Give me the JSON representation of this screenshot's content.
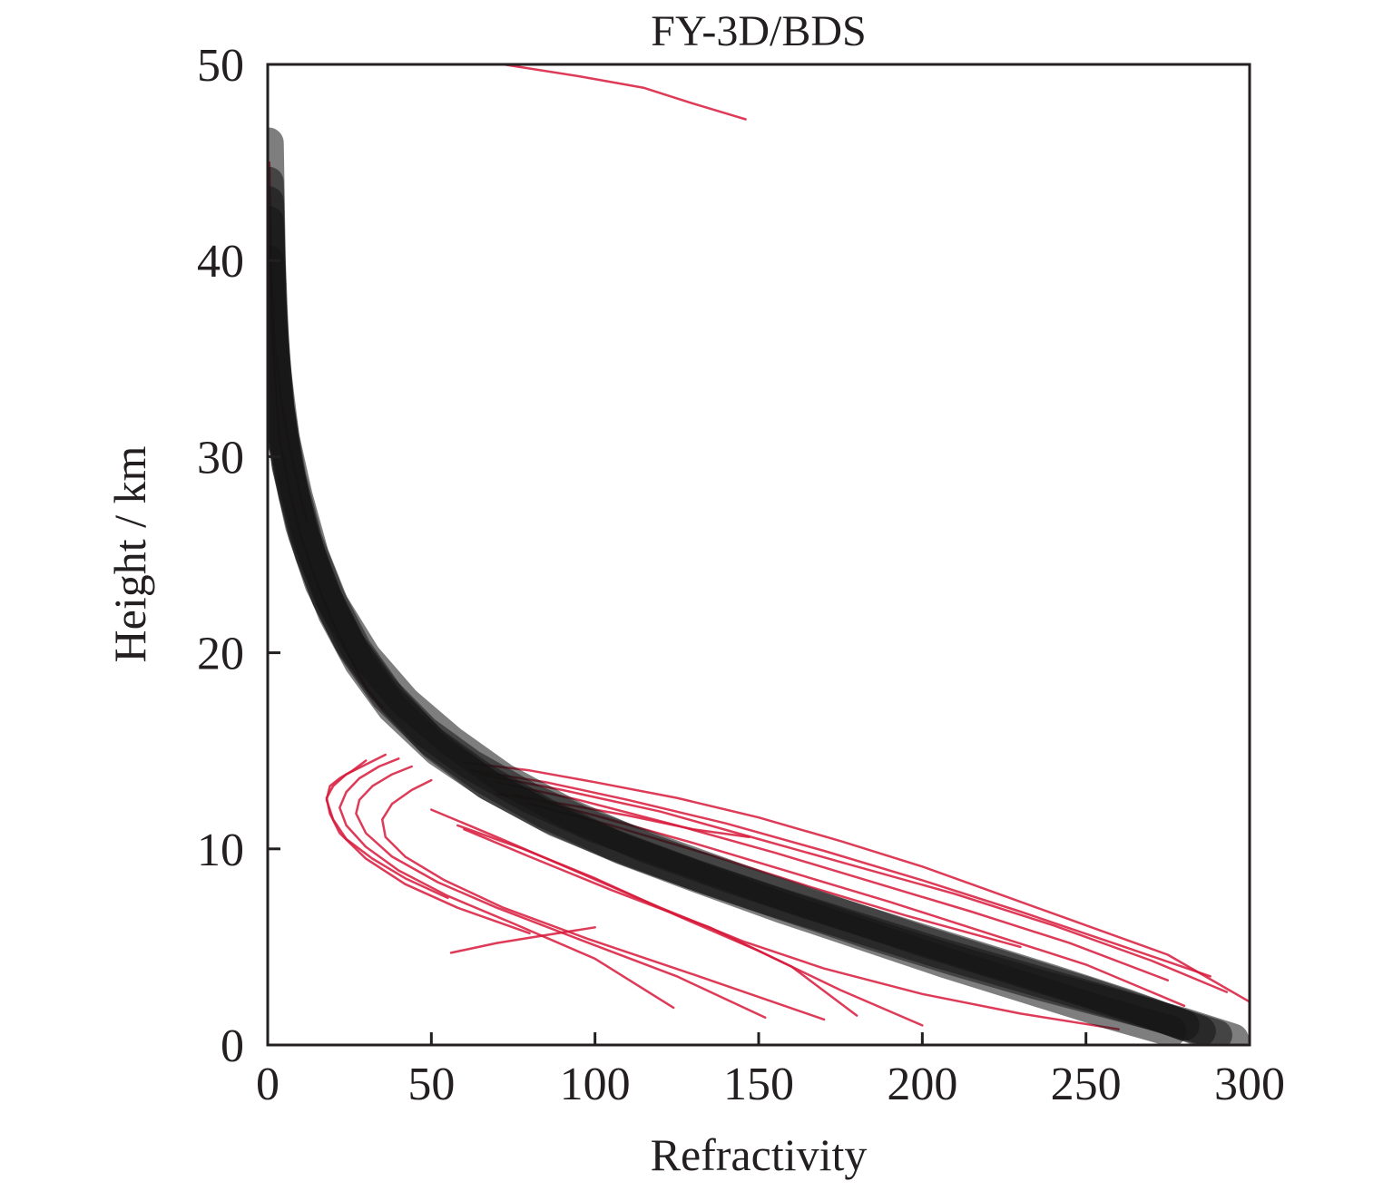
{
  "chart_data": {
    "type": "line",
    "title": "FY-3D/BDS",
    "xlabel": "Refractivity",
    "ylabel": "Height / km",
    "xlim": [
      0,
      300
    ],
    "ylim": [
      0,
      50
    ],
    "xticks": [
      "0",
      "50",
      "100",
      "150",
      "200",
      "250",
      "300"
    ],
    "yticks": [
      "0",
      "10",
      "20",
      "30",
      "40",
      "50"
    ],
    "grid": false,
    "legend": "none",
    "colors": {
      "observed": "#d7193a",
      "reference": "#141414",
      "axis": "#231f20"
    },
    "series": [
      {
        "group": "observed",
        "x": [
          72,
          95,
          115,
          130,
          146
        ],
        "y": [
          50,
          49.4,
          48.8,
          48.0,
          47.2
        ]
      },
      {
        "group": "observed",
        "x": [
          0.5,
          1,
          2,
          4,
          6,
          8,
          10,
          12
        ],
        "y": [
          45,
          40,
          36,
          33,
          31,
          29.5,
          28,
          26.7
        ]
      },
      {
        "group": "observed",
        "x": [
          0.5,
          1.5,
          3.5,
          7,
          10,
          14,
          20,
          25,
          30,
          35
        ],
        "y": [
          42,
          36,
          31,
          28,
          26,
          24,
          21.5,
          19.8,
          18.2,
          17.2
        ]
      },
      {
        "group": "observed",
        "x": [
          30,
          26,
          22,
          19,
          18,
          20,
          24,
          32,
          42,
          55
        ],
        "y": [
          14.5,
          14.0,
          13.6,
          13.2,
          12.5,
          11.5,
          10.5,
          9.5,
          8.5,
          7.5
        ]
      },
      {
        "group": "observed",
        "x": [
          36,
          30,
          24,
          20,
          18,
          19,
          22,
          30,
          42,
          58,
          80
        ],
        "y": [
          14.8,
          14.3,
          13.8,
          13.2,
          12.6,
          11.8,
          10.8,
          9.5,
          8.2,
          7.0,
          5.7
        ]
      },
      {
        "group": "observed",
        "x": [
          40,
          34,
          28,
          24,
          22,
          24,
          30,
          40,
          55,
          75,
          100,
          124
        ],
        "y": [
          14.6,
          14.2,
          13.6,
          12.9,
          12.1,
          11.2,
          10.1,
          8.9,
          7.6,
          6.2,
          4.4,
          1.9
        ]
      },
      {
        "group": "observed",
        "x": [
          44,
          38,
          32,
          28,
          27,
          30,
          38,
          52,
          70,
          95,
          125,
          152
        ],
        "y": [
          14.2,
          13.8,
          13.2,
          12.5,
          11.8,
          10.8,
          9.6,
          8.3,
          7.0,
          5.4,
          3.5,
          1.4
        ]
      },
      {
        "group": "observed",
        "x": [
          50,
          44,
          38,
          35,
          36,
          42,
          54,
          72,
          98,
          130,
          170
        ],
        "y": [
          13.5,
          13.0,
          12.3,
          11.5,
          10.6,
          9.6,
          8.4,
          7.0,
          5.4,
          3.6,
          1.3
        ]
      },
      {
        "group": "observed",
        "x": [
          56,
          70,
          85,
          100
        ],
        "y": [
          4.7,
          5.2,
          5.6,
          6.0
        ]
      },
      {
        "group": "observed",
        "x": [
          60,
          80,
          100,
          125,
          150,
          175,
          200,
          220,
          245,
          275,
          300
        ],
        "y": [
          14.4,
          14.0,
          13.4,
          12.6,
          11.6,
          10.4,
          9.1,
          7.9,
          6.4,
          4.6,
          2.2
        ]
      },
      {
        "group": "observed",
        "x": [
          62,
          85,
          110,
          140,
          170,
          200,
          230,
          260,
          288
        ],
        "y": [
          14.0,
          13.4,
          12.5,
          11.3,
          9.9,
          8.4,
          6.8,
          5.1,
          3.5
        ]
      },
      {
        "group": "observed",
        "x": [
          65,
          90,
          120,
          150,
          180,
          210,
          240,
          270,
          293
        ],
        "y": [
          13.8,
          13.0,
          11.9,
          10.5,
          9.1,
          7.7,
          6.1,
          4.3,
          2.7
        ]
      },
      {
        "group": "observed",
        "x": [
          70,
          95,
          125,
          155,
          185,
          215,
          245,
          275
        ],
        "y": [
          13.4,
          12.5,
          11.2,
          9.8,
          8.3,
          6.8,
          5.2,
          3.3
        ]
      },
      {
        "group": "observed",
        "x": [
          75,
          100,
          130,
          160,
          190,
          220,
          250,
          280
        ],
        "y": [
          12.8,
          11.7,
          10.3,
          8.8,
          7.3,
          5.7,
          4.1,
          2.0
        ]
      },
      {
        "group": "observed",
        "x": [
          80,
          105,
          135,
          165,
          195,
          230
        ],
        "y": [
          12.3,
          11.2,
          9.7,
          8.1,
          6.6,
          5.0
        ]
      },
      {
        "group": "observed",
        "x": [
          70,
          90,
          110,
          130,
          147
        ],
        "y": [
          12.8,
          12.3,
          11.7,
          11.0,
          10.6
        ]
      },
      {
        "group": "observed",
        "x": [
          60,
          80,
          105,
          135,
          160,
          180
        ],
        "y": [
          11.0,
          9.6,
          7.9,
          6.0,
          4.0,
          1.5
        ]
      },
      {
        "group": "observed",
        "x": [
          58,
          78,
          100,
          125,
          150,
          175,
          200
        ],
        "y": [
          11.2,
          10.0,
          8.5,
          6.6,
          4.8,
          2.8,
          1.0
        ]
      },
      {
        "group": "observed",
        "x": [
          50,
          70,
          95,
          120,
          145,
          170,
          200,
          230,
          260
        ],
        "y": [
          12.0,
          10.6,
          8.8,
          7.0,
          5.3,
          3.9,
          2.6,
          1.6,
          0.8
        ]
      },
      {
        "group": "reference",
        "x": [
          0.2,
          1,
          3,
          6,
          10,
          16,
          25,
          35,
          48,
          62,
          80,
          100,
          125,
          150,
          175,
          200,
          225,
          250,
          270,
          285
        ],
        "y": [
          44,
          38,
          33,
          29.5,
          26.5,
          23.5,
          20.5,
          18.2,
          16.0,
          14.3,
          12.6,
          11.1,
          9.6,
          8.1,
          6.7,
          5.3,
          4.0,
          2.7,
          1.6,
          0.7
        ]
      },
      {
        "group": "reference",
        "x": [
          0.2,
          1.5,
          4,
          8,
          13,
          20,
          28,
          38,
          52,
          68,
          88,
          110,
          135,
          160,
          185,
          210,
          235,
          260,
          280,
          295
        ],
        "y": [
          42,
          36,
          31.5,
          28,
          25,
          22,
          19.5,
          17.2,
          15.0,
          13.2,
          11.4,
          9.9,
          8.4,
          7.0,
          5.6,
          4.3,
          3.1,
          2.0,
          1.1,
          0.3
        ]
      },
      {
        "group": "reference",
        "x": [
          0.2,
          0.8,
          2,
          5,
          9,
          14,
          20,
          30,
          42,
          56,
          72,
          92,
          115,
          140,
          165,
          190,
          215,
          240,
          262,
          280
        ],
        "y": [
          46,
          40,
          35,
          31,
          28,
          25,
          22.5,
          19.8,
          17.5,
          15.5,
          13.6,
          11.8,
          10.1,
          8.6,
          7.2,
          5.9,
          4.6,
          3.3,
          2.1,
          1.0
        ]
      },
      {
        "group": "reference",
        "x": [
          0.3,
          2,
          6,
          11,
          18,
          26,
          36,
          50,
          66,
          85,
          106,
          130,
          155,
          180,
          205,
          230,
          255,
          275,
          290
        ],
        "y": [
          40,
          34,
          29.5,
          26,
          22.8,
          20.2,
          17.8,
          15.5,
          13.6,
          11.8,
          10.2,
          8.7,
          7.3,
          6.0,
          4.7,
          3.5,
          2.3,
          1.3,
          0.5
        ]
      },
      {
        "group": "reference",
        "x": [
          0.2,
          1.2,
          3.5,
          7,
          12,
          19,
          27,
          38,
          51,
          67,
          86,
          108,
          132,
          157,
          182,
          207,
          232,
          257,
          276
        ],
        "y": [
          43,
          37,
          32.5,
          29,
          25.8,
          22.8,
          20.2,
          17.6,
          15.3,
          13.3,
          11.6,
          10.0,
          8.5,
          7.0,
          5.6,
          4.2,
          2.9,
          1.6,
          0.7
        ]
      }
    ]
  }
}
